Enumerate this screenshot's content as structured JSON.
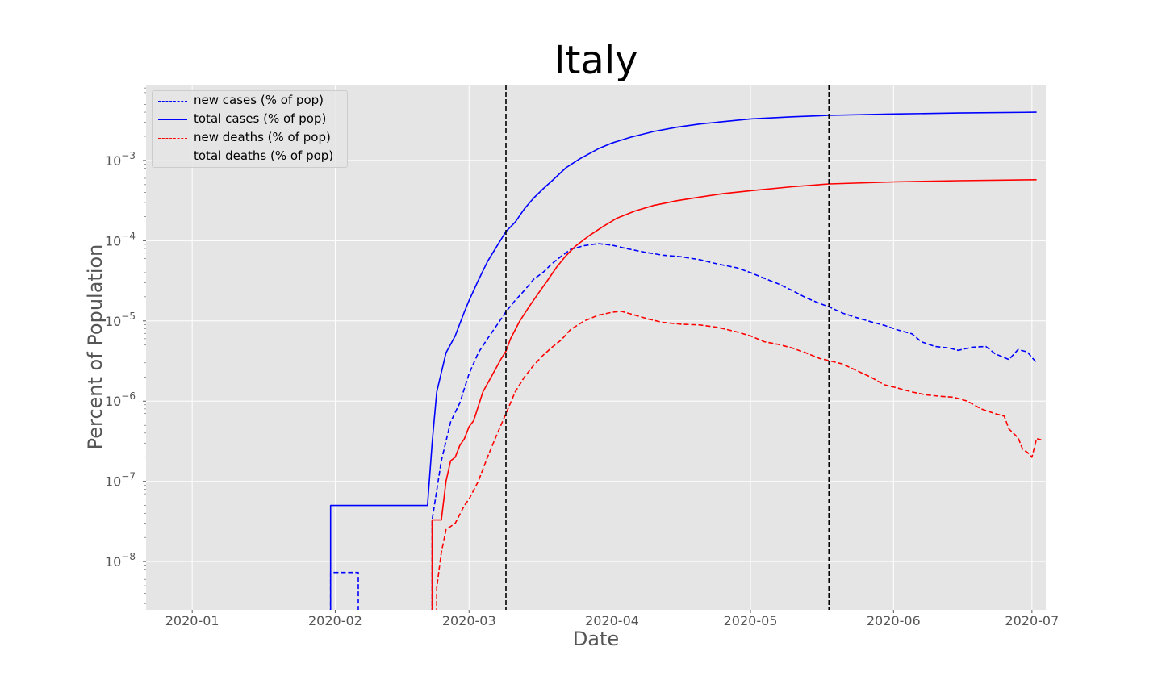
{
  "chart_data": {
    "type": "line",
    "title": "Italy",
    "xlabel": "Date",
    "ylabel": "Percent of Population",
    "yscale": "log",
    "grid": true,
    "legend_position": "top-left",
    "xlim": [
      "2019-12-22",
      "2020-07-04"
    ],
    "ylim": [
      2.5e-09,
      0.0088
    ],
    "x_ticks": [
      "2020-01-01",
      "2020-02-01",
      "2020-03-01",
      "2020-04-01",
      "2020-05-01",
      "2020-06-01",
      "2020-07-01"
    ],
    "x_tick_labels": [
      "2020-01",
      "2020-02",
      "2020-03",
      "2020-04",
      "2020-05",
      "2020-06",
      "2020-07"
    ],
    "y_ticks": [
      1e-08,
      1e-07,
      1e-06,
      1e-05,
      0.0001,
      0.001
    ],
    "y_tick_labels": [
      {
        "base": "10",
        "exp": "−8"
      },
      {
        "base": "10",
        "exp": "−7"
      },
      {
        "base": "10",
        "exp": "−6"
      },
      {
        "base": "10",
        "exp": "−5"
      },
      {
        "base": "10",
        "exp": "−4"
      },
      {
        "base": "10",
        "exp": "−3"
      }
    ],
    "vertical_lines": [
      "2020-03-09",
      "2020-05-18"
    ],
    "series": [
      {
        "name": "new cases (% of pop)",
        "color": "#0000ff",
        "dashed": true,
        "points": [
          [
            "2020-01-31",
            7.3e-09
          ],
          [
            "2020-02-06",
            7.3e-09
          ],
          [
            "2020-02-22",
            3.3e-08
          ],
          [
            "2020-02-24",
            1.8e-07
          ],
          [
            "2020-02-26",
            5.5e-07
          ],
          [
            "2020-02-28",
            9.5e-07
          ],
          [
            "2020-03-01",
            2.2e-06
          ],
          [
            "2020-03-03",
            4e-06
          ],
          [
            "2020-03-05",
            6e-06
          ],
          [
            "2020-03-07",
            8.8e-06
          ],
          [
            "2020-03-09",
            1.3e-05
          ],
          [
            "2020-03-11",
            1.8e-05
          ],
          [
            "2020-03-13",
            2.4e-05
          ],
          [
            "2020-03-15",
            3.3e-05
          ],
          [
            "2020-03-17",
            4e-05
          ],
          [
            "2020-03-19",
            5.2e-05
          ],
          [
            "2020-03-21",
            6.4e-05
          ],
          [
            "2020-03-23",
            7.8e-05
          ],
          [
            "2020-03-26",
            8.7e-05
          ],
          [
            "2020-03-29",
            9.2e-05
          ],
          [
            "2020-04-01",
            8.8e-05
          ],
          [
            "2020-04-04",
            8e-05
          ],
          [
            "2020-04-08",
            7.2e-05
          ],
          [
            "2020-04-12",
            6.6e-05
          ],
          [
            "2020-04-16",
            6.3e-05
          ],
          [
            "2020-04-20",
            5.8e-05
          ],
          [
            "2020-04-24",
            5.1e-05
          ],
          [
            "2020-04-28",
            4.6e-05
          ],
          [
            "2020-05-01",
            4e-05
          ],
          [
            "2020-05-04",
            3.4e-05
          ],
          [
            "2020-05-07",
            2.9e-05
          ],
          [
            "2020-05-10",
            2.4e-05
          ],
          [
            "2020-05-13",
            1.95e-05
          ],
          [
            "2020-05-16",
            1.65e-05
          ],
          [
            "2020-05-18",
            1.5e-05
          ],
          [
            "2020-05-21",
            1.25e-05
          ],
          [
            "2020-05-24",
            1.1e-05
          ],
          [
            "2020-05-27",
            9.8e-06
          ],
          [
            "2020-05-30",
            8.8e-06
          ],
          [
            "2020-06-02",
            7.7e-06
          ],
          [
            "2020-06-05",
            6.9e-06
          ],
          [
            "2020-06-07",
            5.5e-06
          ],
          [
            "2020-06-10",
            4.8e-06
          ],
          [
            "2020-06-13",
            4.6e-06
          ],
          [
            "2020-06-15",
            4.3e-06
          ],
          [
            "2020-06-18",
            4.7e-06
          ],
          [
            "2020-06-21",
            4.8e-06
          ],
          [
            "2020-06-23",
            3.9e-06
          ],
          [
            "2020-06-26",
            3.3e-06
          ],
          [
            "2020-06-28",
            4.4e-06
          ],
          [
            "2020-06-30",
            4.1e-06
          ],
          [
            "2020-07-02",
            3e-06
          ]
        ]
      },
      {
        "name": "total cases (% of pop)",
        "color": "#0000ff",
        "dashed": false,
        "points": [
          [
            "2020-01-31",
            5e-08
          ],
          [
            "2020-02-21",
            5e-08
          ],
          [
            "2020-02-22",
            3e-07
          ],
          [
            "2020-02-23",
            1.3e-06
          ],
          [
            "2020-02-25",
            4e-06
          ],
          [
            "2020-02-27",
            6.5e-06
          ],
          [
            "2020-02-29",
            1.3e-05
          ],
          [
            "2020-03-01",
            1.8e-05
          ],
          [
            "2020-03-03",
            3.2e-05
          ],
          [
            "2020-03-05",
            5.5e-05
          ],
          [
            "2020-03-07",
            8.5e-05
          ],
          [
            "2020-03-09",
            0.00013
          ],
          [
            "2020-03-11",
            0.00017
          ],
          [
            "2020-03-13",
            0.00025
          ],
          [
            "2020-03-15",
            0.00034
          ],
          [
            "2020-03-17",
            0.00044
          ],
          [
            "2020-03-19",
            0.00056
          ],
          [
            "2020-03-22",
            0.00081
          ],
          [
            "2020-03-25",
            0.00105
          ],
          [
            "2020-03-29",
            0.0014
          ],
          [
            "2020-04-01",
            0.00165
          ],
          [
            "2020-04-05",
            0.00195
          ],
          [
            "2020-04-10",
            0.0023
          ],
          [
            "2020-04-15",
            0.0026
          ],
          [
            "2020-04-20",
            0.00285
          ],
          [
            "2020-04-25",
            0.00305
          ],
          [
            "2020-05-01",
            0.0033
          ],
          [
            "2020-05-10",
            0.0035
          ],
          [
            "2020-05-18",
            0.00365
          ],
          [
            "2020-06-01",
            0.0038
          ],
          [
            "2020-06-15",
            0.0039
          ],
          [
            "2020-07-02",
            0.004
          ]
        ]
      },
      {
        "name": "new deaths (% of pop)",
        "color": "#ff0000",
        "dashed": true,
        "points": [
          [
            "2020-02-23",
            4.7e-09
          ],
          [
            "2020-02-24",
            1.3e-08
          ],
          [
            "2020-02-25",
            2.5e-08
          ],
          [
            "2020-02-27",
            3e-08
          ],
          [
            "2020-02-29",
            5e-08
          ],
          [
            "2020-03-01",
            6e-08
          ],
          [
            "2020-03-03",
            1e-07
          ],
          [
            "2020-03-05",
            2e-07
          ],
          [
            "2020-03-07",
            3.8e-07
          ],
          [
            "2020-03-09",
            7e-07
          ],
          [
            "2020-03-11",
            1.3e-06
          ],
          [
            "2020-03-13",
            2e-06
          ],
          [
            "2020-03-15",
            2.8e-06
          ],
          [
            "2020-03-17",
            3.7e-06
          ],
          [
            "2020-03-19",
            4.7e-06
          ],
          [
            "2020-03-21",
            5.8e-06
          ],
          [
            "2020-03-23",
            7.8e-06
          ],
          [
            "2020-03-26",
            1e-05
          ],
          [
            "2020-03-29",
            1.18e-05
          ],
          [
            "2020-04-01",
            1.28e-05
          ],
          [
            "2020-04-03",
            1.32e-05
          ],
          [
            "2020-04-06",
            1.18e-05
          ],
          [
            "2020-04-09",
            1.05e-05
          ],
          [
            "2020-04-12",
            9.6e-06
          ],
          [
            "2020-04-16",
            9.1e-06
          ],
          [
            "2020-04-20",
            8.9e-06
          ],
          [
            "2020-04-24",
            8.3e-06
          ],
          [
            "2020-04-28",
            7.3e-06
          ],
          [
            "2020-05-01",
            6.5e-06
          ],
          [
            "2020-05-04",
            5.5e-06
          ],
          [
            "2020-05-07",
            5.1e-06
          ],
          [
            "2020-05-10",
            4.6e-06
          ],
          [
            "2020-05-13",
            4e-06
          ],
          [
            "2020-05-16",
            3.4e-06
          ],
          [
            "2020-05-18",
            3.2e-06
          ],
          [
            "2020-05-21",
            2.9e-06
          ],
          [
            "2020-05-24",
            2.4e-06
          ],
          [
            "2020-05-27",
            2e-06
          ],
          [
            "2020-05-30",
            1.6e-06
          ],
          [
            "2020-06-02",
            1.45e-06
          ],
          [
            "2020-06-05",
            1.3e-06
          ],
          [
            "2020-06-08",
            1.2e-06
          ],
          [
            "2020-06-11",
            1.15e-06
          ],
          [
            "2020-06-14",
            1.12e-06
          ],
          [
            "2020-06-17",
            1e-06
          ],
          [
            "2020-06-20",
            8e-07
          ],
          [
            "2020-06-23",
            7e-07
          ],
          [
            "2020-06-25",
            6.5e-07
          ],
          [
            "2020-06-26",
            4.5e-07
          ],
          [
            "2020-06-28",
            3.5e-07
          ],
          [
            "2020-06-29",
            2.5e-07
          ],
          [
            "2020-06-30",
            2.3e-07
          ],
          [
            "2020-07-01",
            2e-07
          ],
          [
            "2020-07-02",
            3.4e-07
          ],
          [
            "2020-07-03",
            3.3e-07
          ]
        ]
      },
      {
        "name": "total deaths (% of pop)",
        "color": "#ff0000",
        "dashed": false,
        "points": [
          [
            "2020-02-22",
            3.3e-08
          ],
          [
            "2020-02-24",
            3.3e-08
          ],
          [
            "2020-02-25",
            1e-07
          ],
          [
            "2020-02-26",
            1.8e-07
          ],
          [
            "2020-02-27",
            2e-07
          ],
          [
            "2020-02-28",
            2.8e-07
          ],
          [
            "2020-02-29",
            3.4e-07
          ],
          [
            "2020-03-01",
            4.8e-07
          ],
          [
            "2020-03-02",
            5.7e-07
          ],
          [
            "2020-03-04",
            1.3e-06
          ],
          [
            "2020-03-06",
            2.1e-06
          ],
          [
            "2020-03-08",
            3.4e-06
          ],
          [
            "2020-03-09",
            4.2e-06
          ],
          [
            "2020-03-10",
            6e-06
          ],
          [
            "2020-03-12",
            1e-05
          ],
          [
            "2020-03-14",
            1.5e-05
          ],
          [
            "2020-03-16",
            2.2e-05
          ],
          [
            "2020-03-18",
            3.2e-05
          ],
          [
            "2020-03-20",
            4.7e-05
          ],
          [
            "2020-03-22",
            6.5e-05
          ],
          [
            "2020-03-24",
            8.5e-05
          ],
          [
            "2020-03-27",
            0.000115
          ],
          [
            "2020-03-30",
            0.00015
          ],
          [
            "2020-04-02",
            0.00019
          ],
          [
            "2020-04-06",
            0.000235
          ],
          [
            "2020-04-10",
            0.000275
          ],
          [
            "2020-04-15",
            0.000315
          ],
          [
            "2020-04-20",
            0.00035
          ],
          [
            "2020-04-25",
            0.000385
          ],
          [
            "2020-05-01",
            0.00042
          ],
          [
            "2020-05-10",
            0.00047
          ],
          [
            "2020-05-18",
            0.00051
          ],
          [
            "2020-06-01",
            0.00054
          ],
          [
            "2020-06-15",
            0.00056
          ],
          [
            "2020-07-02",
            0.000575
          ]
        ]
      }
    ]
  }
}
